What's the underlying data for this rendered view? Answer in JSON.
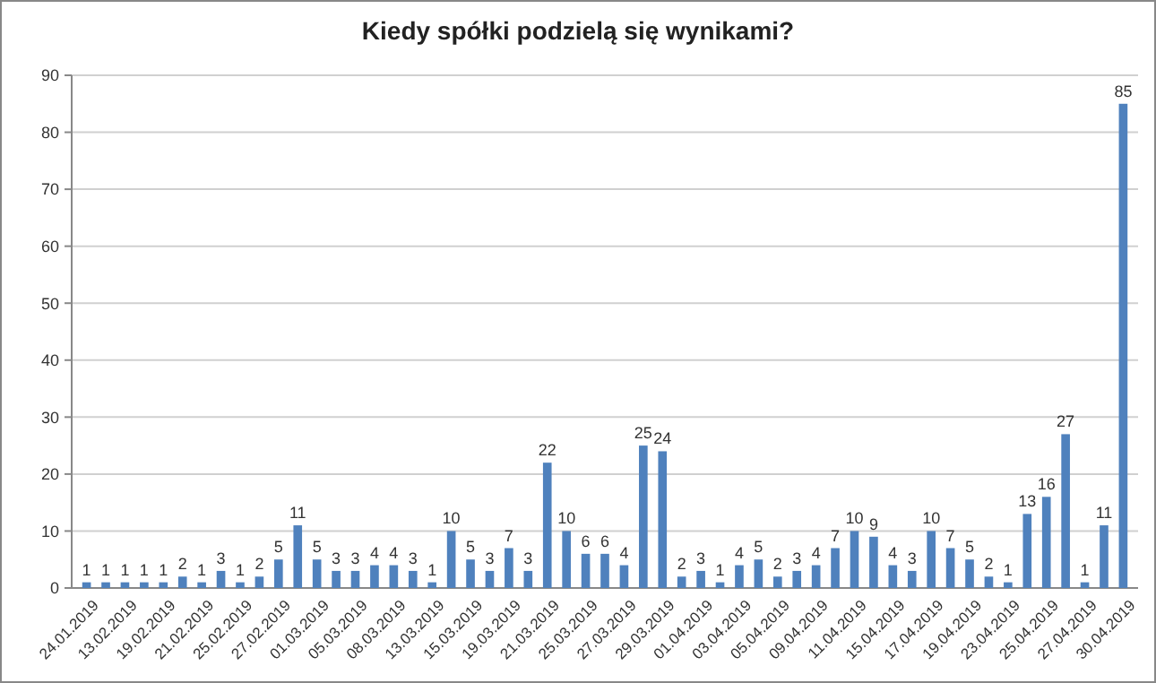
{
  "chart_data": {
    "type": "bar",
    "title": "Kiedy spółki podzielą się wynikami?",
    "categories": [
      "24.01.2019",
      null,
      "13.02.2019",
      null,
      "19.02.2019",
      null,
      "21.02.2019",
      null,
      "25.02.2019",
      null,
      "27.02.2019",
      null,
      "01.03.2019",
      null,
      "05.03.2019",
      null,
      "08.03.2019",
      null,
      "13.03.2019",
      null,
      "15.03.2019",
      null,
      "19.03.2019",
      null,
      "21.03.2019",
      null,
      "25.03.2019",
      null,
      "27.03.2019",
      null,
      "29.03.2019",
      null,
      "01.04.2019",
      null,
      "03.04.2019",
      null,
      "05.04.2019",
      null,
      "09.04.2019",
      null,
      "11.04.2019",
      null,
      "15.04.2019",
      null,
      "17.04.2019",
      null,
      "19.04.2019",
      null,
      "23.04.2019",
      null,
      "25.04.2019",
      null,
      "27.04.2019",
      null,
      "30.04.2019"
    ],
    "values": [
      1,
      1,
      1,
      1,
      1,
      2,
      1,
      3,
      1,
      2,
      5,
      11,
      5,
      3,
      3,
      4,
      4,
      3,
      1,
      10,
      5,
      3,
      7,
      3,
      22,
      10,
      6,
      6,
      4,
      25,
      24,
      2,
      3,
      1,
      4,
      5,
      2,
      3,
      4,
      7,
      10,
      9,
      4,
      3,
      10,
      7,
      5,
      2,
      1,
      13,
      16,
      27,
      1,
      11,
      85
    ],
    "color": "#4f81bd",
    "ylim": [
      0,
      90
    ],
    "yticks": [
      0,
      10,
      20,
      30,
      40,
      50,
      60,
      70,
      80,
      90
    ],
    "grid": "y",
    "data_labels": true
  }
}
